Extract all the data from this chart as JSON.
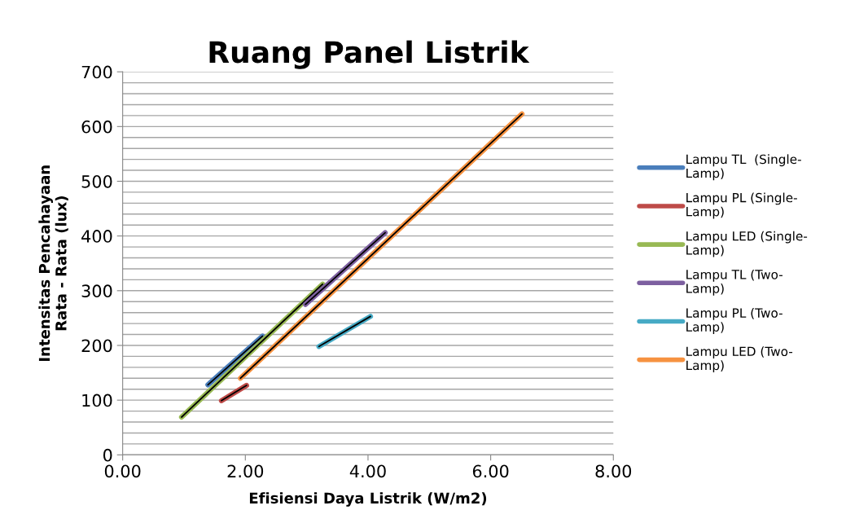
{
  "chart_data": {
    "type": "line",
    "title": "Ruang Panel Listrik",
    "xlabel": "Efisiensi Daya Listrik (W/m2)",
    "ylabel": "Intensitas Pencahayaan\nRata - Rata (lux)",
    "series": [
      {
        "name": "Lampu TL  (Single-\nLamp)",
        "color": "#4a7ebb",
        "x": [
          1.39,
          2.28
        ],
        "values": [
          128,
          217
        ]
      },
      {
        "name": "Lampu PL (Single-\nLamp)",
        "color": "#be4b48",
        "x": [
          1.61,
          2.02
        ],
        "values": [
          99,
          127
        ]
      },
      {
        "name": "Lampu LED (Single-\nLamp)",
        "color": "#98b954",
        "x": [
          0.96,
          3.26
        ],
        "values": [
          69,
          312
        ]
      },
      {
        "name": "Lampu TL (Two-\nLamp)",
        "color": "#7d60a0",
        "x": [
          2.98,
          4.28
        ],
        "values": [
          275,
          406
        ]
      },
      {
        "name": "Lampu PL (Two-\nLamp)",
        "color": "#46aac5",
        "x": [
          3.2,
          4.04
        ],
        "values": [
          198,
          253
        ]
      },
      {
        "name": "Lampu LED (Two-\nLamp)",
        "color": "#f69240",
        "x": [
          1.92,
          6.51
        ],
        "values": [
          140,
          623
        ]
      }
    ],
    "xlim": [
      0,
      8
    ],
    "xticks": [
      {
        "value": 0,
        "label": "0.00"
      },
      {
        "value": 2,
        "label": "2.00"
      },
      {
        "value": 4,
        "label": "4.00"
      },
      {
        "value": 6,
        "label": "6.00"
      },
      {
        "value": 8,
        "label": "8.00"
      }
    ],
    "ylim": [
      0,
      700
    ],
    "yticks": [
      0,
      {
        "value": 20,
        "label": null
      },
      {
        "value": 40,
        "label": null
      },
      {
        "value": 60,
        "label": null
      },
      {
        "value": 80,
        "label": null
      },
      100,
      {
        "value": 120,
        "label": null
      },
      {
        "value": 140,
        "label": null
      },
      {
        "value": 160,
        "label": null
      },
      {
        "value": 180,
        "label": null
      },
      200,
      {
        "value": 220,
        "label": null
      },
      {
        "value": 240,
        "label": null
      },
      {
        "value": 260,
        "label": null
      },
      {
        "value": 280,
        "label": null
      },
      300,
      {
        "value": 320,
        "label": null
      },
      {
        "value": 340,
        "label": null
      },
      {
        "value": 360,
        "label": null
      },
      {
        "value": 380,
        "label": null
      },
      400,
      {
        "value": 420,
        "label": null
      },
      {
        "value": 440,
        "label": null
      },
      {
        "value": 460,
        "label": null
      },
      {
        "value": 480,
        "label": null
      },
      500,
      {
        "value": 520,
        "label": null
      },
      {
        "value": 540,
        "label": null
      },
      {
        "value": 560,
        "label": null
      },
      {
        "value": 580,
        "label": null
      },
      600,
      {
        "value": 620,
        "label": null
      },
      {
        "value": 640,
        "label": null
      },
      {
        "value": 660,
        "label": null
      },
      {
        "value": 680,
        "label": null
      },
      700
    ],
    "grid": "y",
    "legend": "right",
    "line_style": "solid",
    "marker": "none"
  }
}
